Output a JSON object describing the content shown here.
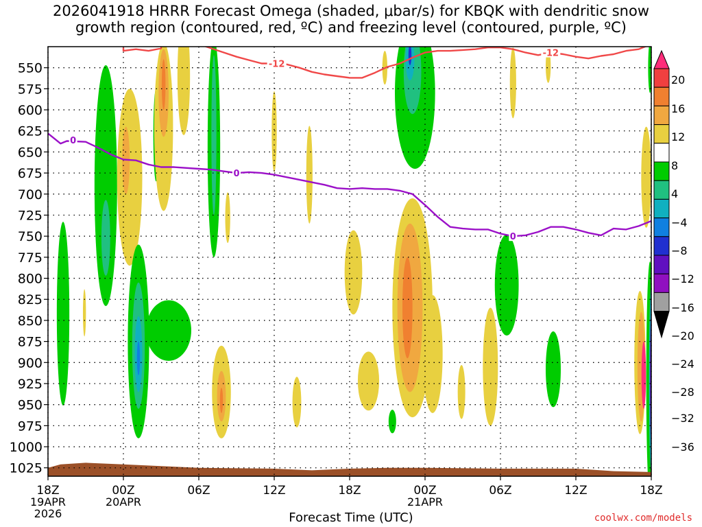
{
  "chart_data": {
    "type": "heatmap",
    "title": "2026041918 HRRR Forecast Omega (shaded, μbar/s) for KBQK with dendritic snow",
    "subtitle": "growth region (contoured, red, ºC) and freezing level (contoured, purple, ºC)",
    "xlabel": "Forecast Time (UTC)",
    "ylabel": "",
    "credit": "coolwx.com/models",
    "x_range_hours": [
      0,
      48
    ],
    "y_range_hpa": [
      1035,
      525
    ],
    "y_ticks": [
      550,
      575,
      600,
      625,
      650,
      675,
      700,
      725,
      750,
      775,
      800,
      825,
      850,
      875,
      900,
      925,
      950,
      975,
      1000,
      1025
    ],
    "x_ticks": [
      {
        "hour": 0,
        "label": "18Z",
        "sub": [
          "19APR",
          "2026"
        ]
      },
      {
        "hour": 6,
        "label": "00Z",
        "sub": [
          "20APR"
        ]
      },
      {
        "hour": 12,
        "label": "06Z",
        "sub": []
      },
      {
        "hour": 18,
        "label": "12Z",
        "sub": []
      },
      {
        "hour": 24,
        "label": "18Z",
        "sub": []
      },
      {
        "hour": 30,
        "label": "00Z",
        "sub": [
          "21APR"
        ]
      },
      {
        "hour": 36,
        "label": "06Z",
        "sub": []
      },
      {
        "hour": 42,
        "label": "12Z",
        "sub": []
      },
      {
        "hour": 48,
        "label": "18Z",
        "sub": []
      }
    ],
    "colorbar": {
      "labels": [
        "20",
        "16",
        "12",
        "8",
        "4",
        "−4",
        "−8",
        "−12",
        "−16",
        "−20",
        "−24",
        "−28",
        "−32",
        "−36"
      ],
      "colors": [
        "#ff2d7a",
        "#f04040",
        "#f08030",
        "#f0a840",
        "#e8d040",
        "#ffffff",
        "#00cc00",
        "#20c080",
        "#10b0c0",
        "#1080e0",
        "#2030d0",
        "#6010c0",
        "#9010c0",
        "#a0a0a0",
        "#000000"
      ]
    },
    "freezing_level": {
      "name": "0",
      "color": "#9b10c8",
      "points": [
        [
          0,
          628
        ],
        [
          1,
          640
        ],
        [
          1.5,
          637
        ],
        [
          3,
          638
        ],
        [
          4,
          645
        ],
        [
          5,
          653
        ],
        [
          6,
          659
        ],
        [
          7,
          660
        ],
        [
          8,
          665
        ],
        [
          9,
          668
        ],
        [
          10,
          668
        ],
        [
          12,
          670
        ],
        [
          13,
          671
        ],
        [
          14,
          673
        ],
        [
          15,
          675
        ],
        [
          16,
          674
        ],
        [
          17,
          675
        ],
        [
          18,
          677
        ],
        [
          20,
          683
        ],
        [
          22,
          689
        ],
        [
          23,
          693
        ],
        [
          24,
          694
        ],
        [
          25,
          693
        ],
        [
          26,
          694
        ],
        [
          27,
          694
        ],
        [
          28,
          696
        ],
        [
          29,
          700
        ],
        [
          30,
          713
        ],
        [
          31,
          727
        ],
        [
          32,
          739
        ],
        [
          33,
          741
        ],
        [
          34,
          742
        ],
        [
          35,
          742
        ],
        [
          36,
          747
        ],
        [
          37,
          750
        ],
        [
          38,
          749
        ],
        [
          39,
          745
        ],
        [
          40,
          739
        ],
        [
          41,
          739
        ],
        [
          42,
          742
        ],
        [
          43,
          746
        ],
        [
          44,
          749
        ],
        [
          45,
          741
        ],
        [
          46,
          742
        ],
        [
          47,
          738
        ],
        [
          48,
          732
        ]
      ],
      "labels": [
        [
          2,
          636
        ],
        [
          15,
          675
        ],
        [
          37,
          750
        ]
      ]
    },
    "dgz_minus12": {
      "name": "-12",
      "color": "#f04848",
      "points": [
        [
          6,
          526
        ],
        [
          6,
          530
        ],
        [
          7,
          528
        ],
        [
          8,
          530
        ],
        [
          9,
          527
        ],
        [
          9,
          521
        ],
        [
          12,
          522
        ],
        [
          13,
          527
        ],
        [
          14,
          532
        ],
        [
          15,
          537
        ],
        [
          16,
          541
        ],
        [
          17,
          545
        ],
        [
          18,
          545
        ],
        [
          19,
          546
        ],
        [
          20,
          550
        ],
        [
          21,
          555
        ],
        [
          22,
          558
        ],
        [
          23,
          560
        ],
        [
          24,
          562
        ],
        [
          25,
          562
        ],
        [
          26,
          556
        ],
        [
          27,
          549
        ],
        [
          28,
          545
        ],
        [
          29,
          538
        ],
        [
          30,
          532
        ],
        [
          31,
          530
        ],
        [
          32,
          530
        ],
        [
          33,
          529
        ],
        [
          34,
          528
        ],
        [
          35,
          526
        ],
        [
          36,
          526
        ],
        [
          37,
          528
        ],
        [
          38,
          532
        ],
        [
          39,
          535
        ],
        [
          40,
          532
        ],
        [
          41,
          534
        ],
        [
          42,
          537
        ],
        [
          43,
          539
        ],
        [
          44,
          536
        ],
        [
          45,
          534
        ],
        [
          46,
          530
        ],
        [
          47,
          528
        ],
        [
          48,
          522
        ]
      ],
      "labels": [
        [
          18.2,
          545
        ],
        [
          40,
          532
        ]
      ]
    },
    "omega_regions": [
      {
        "value": -6,
        "color": "#00cc00",
        "hour": 1.2,
        "hpa": 842,
        "rh": 0.5,
        "rp": 109
      },
      {
        "value": -6,
        "color": "#00cc00",
        "hour": 4.6,
        "hpa": 690,
        "rh": 0.9,
        "rp": 143
      },
      {
        "value": -10,
        "color": "#20c080",
        "hour": 4.6,
        "hpa": 752,
        "rh": 0.35,
        "rp": 45
      },
      {
        "value": 6,
        "color": "#e8d040",
        "hour": 2.9,
        "hpa": 841,
        "rh": 0.12,
        "rp": 28
      },
      {
        "value": 6,
        "color": "#e8d040",
        "hour": 6.5,
        "hpa": 680,
        "rh": 1.0,
        "rp": 105
      },
      {
        "value": 10,
        "color": "#f0a840",
        "hour": 6.2,
        "hpa": 660,
        "rh": 0.3,
        "rp": 40
      },
      {
        "value": -6,
        "color": "#00cc00",
        "hour": 7.2,
        "hpa": 875,
        "rh": 0.85,
        "rp": 115
      },
      {
        "value": -10,
        "color": "#20c080",
        "hour": 7.2,
        "hpa": 880,
        "rh": 0.5,
        "rp": 75
      },
      {
        "value": -14,
        "color": "#10b0c0",
        "hour": 7.2,
        "hpa": 890,
        "rh": 0.3,
        "rp": 45
      },
      {
        "value": -18,
        "color": "#1080e0",
        "hour": 7.2,
        "hpa": 895,
        "rh": 0.12,
        "rp": 20
      },
      {
        "value": -6,
        "color": "#00cc00",
        "hour": 9.6,
        "hpa": 862,
        "rh": 1.8,
        "rp": 36
      },
      {
        "value": -6,
        "color": "#00cc00",
        "hour": 8.6,
        "hpa": 630,
        "rh": 0.22,
        "rp": 55
      },
      {
        "value": 6,
        "color": "#e8d040",
        "hour": 9.2,
        "hpa": 620,
        "rh": 0.75,
        "rp": 100
      },
      {
        "value": 10,
        "color": "#f0a840",
        "hour": 9.2,
        "hpa": 580,
        "rh": 0.4,
        "rp": 52
      },
      {
        "value": 14,
        "color": "#f08030",
        "hour": 9.2,
        "hpa": 570,
        "rh": 0.15,
        "rp": 30
      },
      {
        "value": 6,
        "color": "#e8d040",
        "hour": 10.8,
        "hpa": 560,
        "rh": 0.5,
        "rp": 70
      },
      {
        "value": -6,
        "color": "#00cc00",
        "hour": 13.2,
        "hpa": 645,
        "rh": 0.5,
        "rp": 130
      },
      {
        "value": -10,
        "color": "#20c080",
        "hour": 13.2,
        "hpa": 630,
        "rh": 0.2,
        "rp": 95
      },
      {
        "value": 6,
        "color": "#e8d040",
        "hour": 13.8,
        "hpa": 935,
        "rh": 0.75,
        "rp": 55
      },
      {
        "value": 10,
        "color": "#f0a840",
        "hour": 13.8,
        "hpa": 940,
        "rh": 0.35,
        "rp": 30
      },
      {
        "value": 14,
        "color": "#f08030",
        "hour": 13.8,
        "hpa": 945,
        "rh": 0.12,
        "rp": 15
      },
      {
        "value": 6,
        "color": "#e8d040",
        "hour": 14.3,
        "hpa": 728,
        "rh": 0.2,
        "rp": 30
      },
      {
        "value": 6,
        "color": "#e8d040",
        "hour": 18.0,
        "hpa": 626,
        "rh": 0.2,
        "rp": 48
      },
      {
        "value": 6,
        "color": "#e8d040",
        "hour": 19.8,
        "hpa": 947,
        "rh": 0.35,
        "rp": 30
      },
      {
        "value": 6,
        "color": "#e8d040",
        "hour": 20.8,
        "hpa": 677,
        "rh": 0.25,
        "rp": 58
      },
      {
        "value": 6,
        "color": "#e8d040",
        "hour": 24.3,
        "hpa": 793,
        "rh": 0.7,
        "rp": 50
      },
      {
        "value": 6,
        "color": "#e8d040",
        "hour": 25.5,
        "hpa": 922,
        "rh": 0.85,
        "rp": 35
      },
      {
        "value": 6,
        "color": "#e8d040",
        "hour": 26.8,
        "hpa": 550,
        "rh": 0.2,
        "rp": 20
      },
      {
        "value": 6,
        "color": "#e8d040",
        "hour": 29.0,
        "hpa": 835,
        "rh": 1.6,
        "rp": 130
      },
      {
        "value": 10,
        "color": "#f0a840",
        "hour": 28.8,
        "hpa": 835,
        "rh": 1.0,
        "rp": 100
      },
      {
        "value": 14,
        "color": "#f08030",
        "hour": 28.6,
        "hpa": 835,
        "rh": 0.4,
        "rp": 60
      },
      {
        "value": 6,
        "color": "#e8d040",
        "hour": 30.6,
        "hpa": 890,
        "rh": 0.8,
        "rp": 70
      },
      {
        "value": 6,
        "color": "#e8d040",
        "hour": 30.4,
        "hpa": 560,
        "rh": 0.25,
        "rp": 20
      },
      {
        "value": -6,
        "color": "#00cc00",
        "hour": 29.2,
        "hpa": 580,
        "rh": 1.6,
        "rp": 90
      },
      {
        "value": -10,
        "color": "#20c080",
        "hour": 29.0,
        "hpa": 555,
        "rh": 0.7,
        "rp": 50
      },
      {
        "value": -14,
        "color": "#10b0c0",
        "hour": 28.8,
        "hpa": 540,
        "rh": 0.35,
        "rp": 25
      },
      {
        "value": -22,
        "color": "#2030d0",
        "hour": 28.8,
        "hpa": 535,
        "rh": 0.12,
        "rp": 12
      },
      {
        "value": -6,
        "color": "#00cc00",
        "hour": 27.4,
        "hpa": 970,
        "rh": 0.3,
        "rp": 14
      },
      {
        "value": 6,
        "color": "#e8d040",
        "hour": 32.9,
        "hpa": 935,
        "rh": 0.3,
        "rp": 32
      },
      {
        "value": 6,
        "color": "#e8d040",
        "hour": 35.2,
        "hpa": 905,
        "rh": 0.6,
        "rp": 70
      },
      {
        "value": -6,
        "color": "#00cc00",
        "hour": 36.5,
        "hpa": 808,
        "rh": 0.95,
        "rp": 60
      },
      {
        "value": -6,
        "color": "#00cc00",
        "hour": 40.2,
        "hpa": 908,
        "rh": 0.6,
        "rp": 45
      },
      {
        "value": 6,
        "color": "#e8d040",
        "hour": 37.0,
        "hpa": 568,
        "rh": 0.25,
        "rp": 42
      },
      {
        "value": 6,
        "color": "#e8d040",
        "hour": 39.8,
        "hpa": 548,
        "rh": 0.2,
        "rp": 20
      },
      {
        "value": 6,
        "color": "#e8d040",
        "hour": 47.1,
        "hpa": 900,
        "rh": 0.45,
        "rp": 85
      },
      {
        "value": 10,
        "color": "#f0a840",
        "hour": 47.2,
        "hpa": 905,
        "rh": 0.3,
        "rp": 65
      },
      {
        "value": 20,
        "color": "#ff2d7a",
        "hour": 47.4,
        "hpa": 915,
        "rh": 0.18,
        "rp": 40
      },
      {
        "value": 6,
        "color": "#e8d040",
        "hour": 47.6,
        "hpa": 680,
        "rh": 0.4,
        "rp": 60
      },
      {
        "value": -6,
        "color": "#00cc00",
        "hour": 47.9,
        "hpa": 920,
        "rh": 0.3,
        "rp": 140
      },
      {
        "value": -14,
        "color": "#10b0c0",
        "hour": 48.0,
        "hpa": 920,
        "rh": 0.18,
        "rp": 110
      },
      {
        "value": -26,
        "color": "#6010c0",
        "hour": 48.0,
        "hpa": 920,
        "rh": 0.1,
        "rp": 80
      },
      {
        "value": -6,
        "color": "#00cc00",
        "hour": 47.9,
        "hpa": 550,
        "rh": 0.15,
        "rp": 30
      }
    ],
    "terrain": {
      "color": "#9b5028",
      "points": [
        [
          0,
          1025
        ],
        [
          1,
          1021
        ],
        [
          3,
          1019
        ],
        [
          6,
          1021
        ],
        [
          9,
          1023
        ],
        [
          12,
          1025
        ],
        [
          18,
          1026
        ],
        [
          21,
          1028
        ],
        [
          24,
          1026
        ],
        [
          27,
          1025
        ],
        [
          30,
          1025
        ],
        [
          36,
          1026
        ],
        [
          42,
          1026
        ],
        [
          45,
          1029
        ],
        [
          48,
          1030
        ]
      ]
    }
  }
}
